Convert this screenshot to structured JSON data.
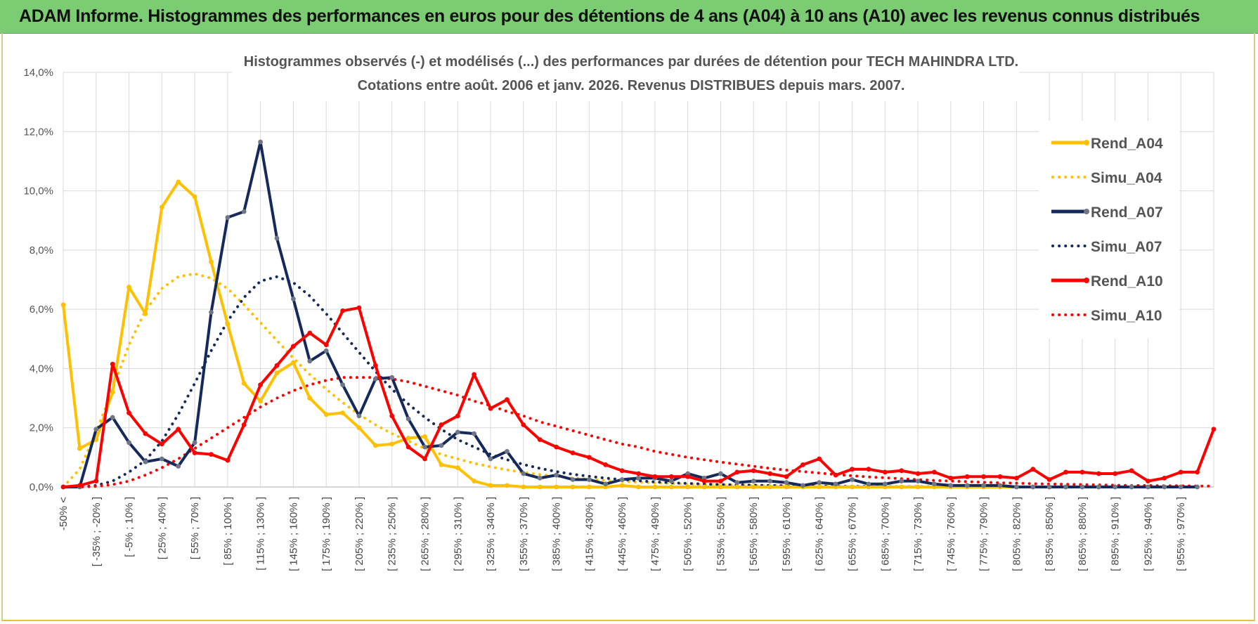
{
  "header": {
    "title": "ADAM Informe. Histogrammes des performances en euros pour des détentions de 4 ans (A04) à 10 ans (A10) avec les revenus connus distribués"
  },
  "chart_data": {
    "type": "line",
    "title_line1": "Histogrammes observés (-) et modélisés (...) des performances par durées de détention pour TECH MAHINDRA LTD.",
    "title_line2": "Cotations entre août. 2006 et janv. 2026. Revenus DISTRIBUES depuis mars. 2007.",
    "xlabel": "",
    "ylabel": "",
    "ylim": [
      0,
      14
    ],
    "yticks": [
      "0,0%",
      "2,0%",
      "4,0%",
      "6,0%",
      "8,0%",
      "10,0%",
      "12,0%",
      "14,0%"
    ],
    "grid": true,
    "legend_position": "right",
    "x_labels": [
      "-50% <",
      "[ -35% ; -20% ]",
      "[ -5% ; 10% ]",
      "[ 25% ; 40% ]",
      "[ 55% ; 70% ]",
      "[ 85% ; 100% ]",
      "[ 115% ; 130% ]",
      "[ 145% ; 160% ]",
      "[ 175% ; 190% ]",
      "[ 205% ; 220% ]",
      "[ 235% ; 250% ]",
      "[ 265% ; 280% ]",
      "[ 295% ; 310% ]",
      "[ 325% ; 340% ]",
      "[ 355% ; 370% ]",
      "[ 385% ; 400% ]",
      "[ 415% ; 430% ]",
      "[ 445% ; 460% ]",
      "[ 475% ; 490% ]",
      "[ 505% ; 520% ]",
      "[ 535% ; 550% ]",
      "[ 565% ; 580% ]",
      "[ 595% ; 610% ]",
      "[ 625% ; 640% ]",
      "[ 655% ; 670% ]",
      "[ 685% ; 700% ]",
      "[ 715% ; 730% ]",
      "[ 745% ; 760% ]",
      "[ 775% ; 790% ]",
      "[ 805% ; 820% ]",
      "[ 835% ; 850% ]",
      "[ 865% ; 880% ]",
      "[ 895% ; 910% ]",
      "[ 925% ; 940% ]",
      "[ 955% ; 970% ]"
    ],
    "series": [
      {
        "name": "Rend_A04",
        "style": "solid",
        "color": "#ffc000",
        "values": [
          6.15,
          1.3,
          1.6,
          3.2,
          6.75,
          5.85,
          9.45,
          10.3,
          9.8,
          7.6,
          5.5,
          3.5,
          2.9,
          3.85,
          4.2,
          3.0,
          2.45,
          2.5,
          2.0,
          1.4,
          1.45,
          1.65,
          1.7,
          0.75,
          0.65,
          0.2,
          0.05,
          0.05,
          0.0,
          0.0,
          0.0,
          0.0,
          0.0,
          0.0,
          0.05,
          0.0,
          0.0,
          0.0,
          0.0,
          0.0,
          0.0,
          0.0,
          0.0,
          0.0,
          0.0,
          0.0,
          0.0,
          0.0,
          0.0,
          0.0,
          0.0,
          0.0,
          0.0,
          0.0,
          0.0,
          0.0,
          0.0,
          0.0,
          0.0,
          0.0,
          0.0,
          0.0,
          0.0,
          0.0,
          0.0,
          0.0,
          0.0,
          0.0,
          0.0,
          0.0
        ]
      },
      {
        "name": "Simu_A04",
        "style": "dotted",
        "color": "#ffc000",
        "values": [
          0.0,
          0.6,
          1.85,
          3.3,
          4.8,
          5.95,
          6.7,
          7.1,
          7.2,
          7.05,
          6.7,
          6.15,
          5.55,
          4.95,
          4.35,
          3.8,
          3.3,
          2.85,
          2.45,
          2.1,
          1.8,
          1.55,
          1.3,
          1.1,
          0.95,
          0.8,
          0.68,
          0.58,
          0.49,
          0.42,
          0.36,
          0.3,
          0.26,
          0.22,
          0.19,
          0.16,
          0.14,
          0.12,
          0.1,
          0.09,
          0.08,
          0.07,
          0.06,
          0.05,
          0.04,
          0.04,
          0.03,
          0.03,
          0.02,
          0.02,
          0.02,
          0.01,
          0.01,
          0.01,
          0.01,
          0.01,
          0.0,
          0.0,
          0.0,
          0.0,
          0.0,
          0.0,
          0.0,
          0.0,
          0.0,
          0.0,
          0.0,
          0.0,
          0.0,
          0.0
        ]
      },
      {
        "name": "Rend_A07",
        "style": "solid",
        "color": "#15295a",
        "values": [
          0.0,
          0.0,
          1.95,
          2.35,
          1.5,
          0.85,
          0.95,
          0.7,
          1.5,
          5.9,
          9.1,
          9.3,
          11.65,
          8.4,
          6.35,
          4.25,
          4.6,
          3.45,
          2.4,
          3.65,
          3.7,
          2.3,
          1.35,
          1.4,
          1.85,
          1.8,
          0.95,
          1.2,
          0.45,
          0.3,
          0.4,
          0.25,
          0.25,
          0.1,
          0.25,
          0.3,
          0.3,
          0.2,
          0.45,
          0.3,
          0.45,
          0.15,
          0.2,
          0.2,
          0.15,
          0.05,
          0.15,
          0.1,
          0.25,
          0.1,
          0.1,
          0.2,
          0.2,
          0.1,
          0.05,
          0.05,
          0.05,
          0.05,
          0.0,
          0.0,
          0.0,
          0.0,
          0.0,
          0.0,
          0.0,
          0.0,
          0.0,
          0.0,
          0.0,
          0.0
        ]
      },
      {
        "name": "Simu_A07",
        "style": "dotted",
        "color": "#15295a",
        "values": [
          0.0,
          0.0,
          0.05,
          0.2,
          0.5,
          0.9,
          1.55,
          2.45,
          3.5,
          4.6,
          5.6,
          6.4,
          6.95,
          7.1,
          6.9,
          6.45,
          5.85,
          5.2,
          4.55,
          3.9,
          3.3,
          2.8,
          2.35,
          1.95,
          1.6,
          1.35,
          1.1,
          0.92,
          0.76,
          0.63,
          0.52,
          0.43,
          0.36,
          0.3,
          0.25,
          0.21,
          0.17,
          0.14,
          0.12,
          0.1,
          0.08,
          0.07,
          0.06,
          0.05,
          0.04,
          0.03,
          0.03,
          0.02,
          0.02,
          0.02,
          0.01,
          0.01,
          0.01,
          0.01,
          0.01,
          0.0,
          0.0,
          0.0,
          0.0,
          0.0,
          0.0,
          0.0,
          0.0,
          0.0,
          0.0,
          0.0,
          0.0,
          0.0,
          0.0,
          0.0
        ]
      },
      {
        "name": "Rend_A10",
        "style": "solid",
        "color": "#ff0000",
        "values": [
          0.0,
          0.05,
          0.2,
          4.15,
          2.5,
          1.8,
          1.45,
          1.95,
          1.15,
          1.1,
          0.9,
          2.1,
          3.45,
          4.1,
          4.75,
          5.2,
          4.8,
          5.95,
          6.05,
          4.1,
          2.4,
          1.35,
          0.95,
          2.1,
          2.4,
          3.8,
          2.65,
          2.95,
          2.1,
          1.6,
          1.35,
          1.15,
          1.0,
          0.75,
          0.55,
          0.45,
          0.35,
          0.35,
          0.35,
          0.2,
          0.2,
          0.5,
          0.55,
          0.45,
          0.35,
          0.75,
          0.95,
          0.4,
          0.6,
          0.6,
          0.5,
          0.55,
          0.45,
          0.5,
          0.3,
          0.35,
          0.35,
          0.35,
          0.3,
          0.6,
          0.25,
          0.5,
          0.5,
          0.45,
          0.45,
          0.55,
          0.2,
          0.3,
          0.5,
          0.5,
          1.95
        ]
      },
      {
        "name": "Simu_A10",
        "style": "dotted",
        "color": "#ff0000",
        "values": [
          0.0,
          0.0,
          0.02,
          0.08,
          0.2,
          0.4,
          0.65,
          0.95,
          1.3,
          1.65,
          2.0,
          2.35,
          2.7,
          3.0,
          3.25,
          3.45,
          3.6,
          3.7,
          3.7,
          3.7,
          3.65,
          3.55,
          3.4,
          3.25,
          3.1,
          2.9,
          2.75,
          2.55,
          2.4,
          2.2,
          2.05,
          1.9,
          1.75,
          1.6,
          1.45,
          1.35,
          1.2,
          1.1,
          1.0,
          0.92,
          0.84,
          0.77,
          0.7,
          0.63,
          0.57,
          0.52,
          0.47,
          0.42,
          0.38,
          0.34,
          0.31,
          0.28,
          0.25,
          0.22,
          0.2,
          0.18,
          0.16,
          0.14,
          0.13,
          0.11,
          0.1,
          0.09,
          0.08,
          0.07,
          0.06,
          0.05,
          0.05,
          0.04,
          0.04,
          0.03,
          0.03
        ]
      }
    ]
  }
}
